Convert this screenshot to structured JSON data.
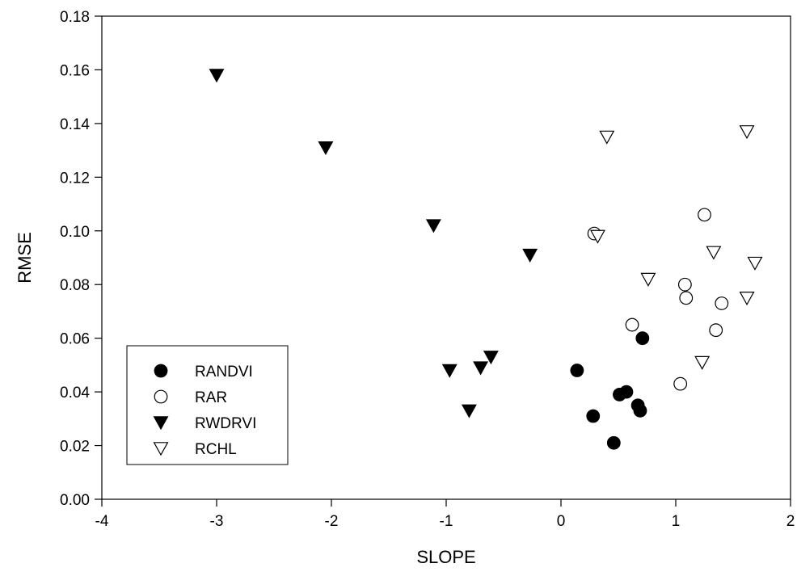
{
  "chart_data": {
    "type": "scatter",
    "title": "",
    "xlabel": "SLOPE",
    "ylabel": "RMSE",
    "xlim": [
      -4,
      2
    ],
    "ylim": [
      0.0,
      0.18
    ],
    "xticks": [
      -4,
      -3,
      -2,
      -1,
      0,
      1,
      2
    ],
    "yticks": [
      0.0,
      0.02,
      0.04,
      0.06,
      0.08,
      0.1,
      0.12,
      0.14,
      0.16,
      0.18
    ],
    "xtick_labels": [
      "-4",
      "-3",
      "-2",
      "-1",
      "0",
      "1",
      "2"
    ],
    "ytick_labels": [
      "0.00",
      "0.02",
      "0.04",
      "0.06",
      "0.08",
      "0.10",
      "0.12",
      "0.14",
      "0.16",
      "0.18"
    ],
    "grid": false,
    "legend_position": "bottom-left",
    "series": [
      {
        "name": "RANDVI",
        "marker": "circle",
        "filled": true,
        "color": "#000000",
        "points": [
          [
            0.14,
            0.048
          ],
          [
            0.28,
            0.031
          ],
          [
            0.46,
            0.021
          ],
          [
            0.51,
            0.039
          ],
          [
            0.57,
            0.04
          ],
          [
            0.67,
            0.035
          ],
          [
            0.69,
            0.033
          ],
          [
            0.71,
            0.06
          ]
        ]
      },
      {
        "name": "RAR",
        "marker": "circle",
        "filled": false,
        "color": "#000000",
        "points": [
          [
            0.29,
            0.099
          ],
          [
            0.62,
            0.065
          ],
          [
            1.04,
            0.043
          ],
          [
            1.08,
            0.08
          ],
          [
            1.09,
            0.075
          ],
          [
            1.25,
            0.106
          ],
          [
            1.35,
            0.063
          ],
          [
            1.4,
            0.073
          ]
        ]
      },
      {
        "name": "RWDRVI",
        "marker": "triangle-down",
        "filled": true,
        "color": "#000000",
        "points": [
          [
            -3.0,
            0.158
          ],
          [
            -2.05,
            0.131
          ],
          [
            -1.11,
            0.102
          ],
          [
            -0.27,
            0.091
          ],
          [
            -0.97,
            0.048
          ],
          [
            -0.8,
            0.033
          ],
          [
            -0.7,
            0.049
          ],
          [
            -0.61,
            0.053
          ]
        ]
      },
      {
        "name": "RCHL",
        "marker": "triangle-down",
        "filled": false,
        "color": "#000000",
        "points": [
          [
            0.32,
            0.098
          ],
          [
            0.4,
            0.135
          ],
          [
            0.76,
            0.082
          ],
          [
            1.23,
            0.051
          ],
          [
            1.33,
            0.092
          ],
          [
            1.62,
            0.075
          ],
          [
            1.62,
            0.137
          ],
          [
            1.69,
            0.088
          ]
        ]
      }
    ]
  }
}
